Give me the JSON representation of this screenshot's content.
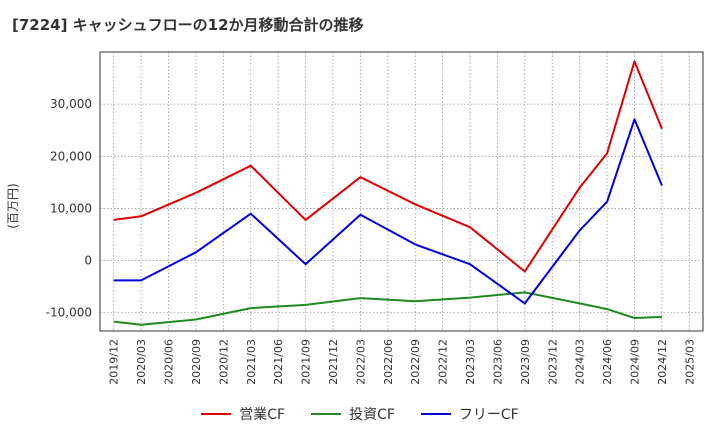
{
  "chart_data": {
    "type": "line",
    "title": "[7224]  キャッシュフローの12か月移動合計の推移",
    "ylabel": "(百万円)",
    "xlabel": "",
    "ylim": [
      -13500,
      40000
    ],
    "yticks": [
      -10000,
      0,
      10000,
      20000,
      30000
    ],
    "ytick_labels": [
      "-10,000",
      "0",
      "10,000",
      "20,000",
      "30,000"
    ],
    "categories": [
      "2019/12",
      "2020/03",
      "2020/06",
      "2020/09",
      "2020/12",
      "2021/03",
      "2021/06",
      "2021/09",
      "2021/12",
      "2022/03",
      "2022/06",
      "2022/09",
      "2022/12",
      "2023/03",
      "2023/06",
      "2023/09",
      "2023/12",
      "2024/03",
      "2024/06",
      "2024/09",
      "2024/12",
      "2025/03"
    ],
    "series": [
      {
        "name": "営業CF",
        "color": "#dd0000",
        "values": [
          7800,
          8500,
          null,
          13000,
          null,
          18200,
          null,
          7800,
          null,
          16000,
          null,
          10800,
          null,
          6400,
          null,
          -2100,
          null,
          14000,
          20600,
          38200,
          25300,
          null
        ]
      },
      {
        "name": "投資CF",
        "color": "#228822",
        "values": [
          -11700,
          -12300,
          null,
          -11300,
          null,
          -9100,
          null,
          -8500,
          null,
          -7200,
          null,
          -7800,
          null,
          -7100,
          null,
          -6100,
          null,
          -8200,
          -9300,
          -11000,
          -10800,
          null
        ]
      },
      {
        "name": "フリーCF",
        "color": "#0000dd",
        "values": [
          -3800,
          -3800,
          null,
          1600,
          null,
          9000,
          null,
          -700,
          null,
          8800,
          null,
          3100,
          null,
          -700,
          null,
          -8200,
          null,
          5800,
          11300,
          27100,
          14400,
          null
        ]
      }
    ],
    "grid": true,
    "legend_position": "bottom"
  }
}
